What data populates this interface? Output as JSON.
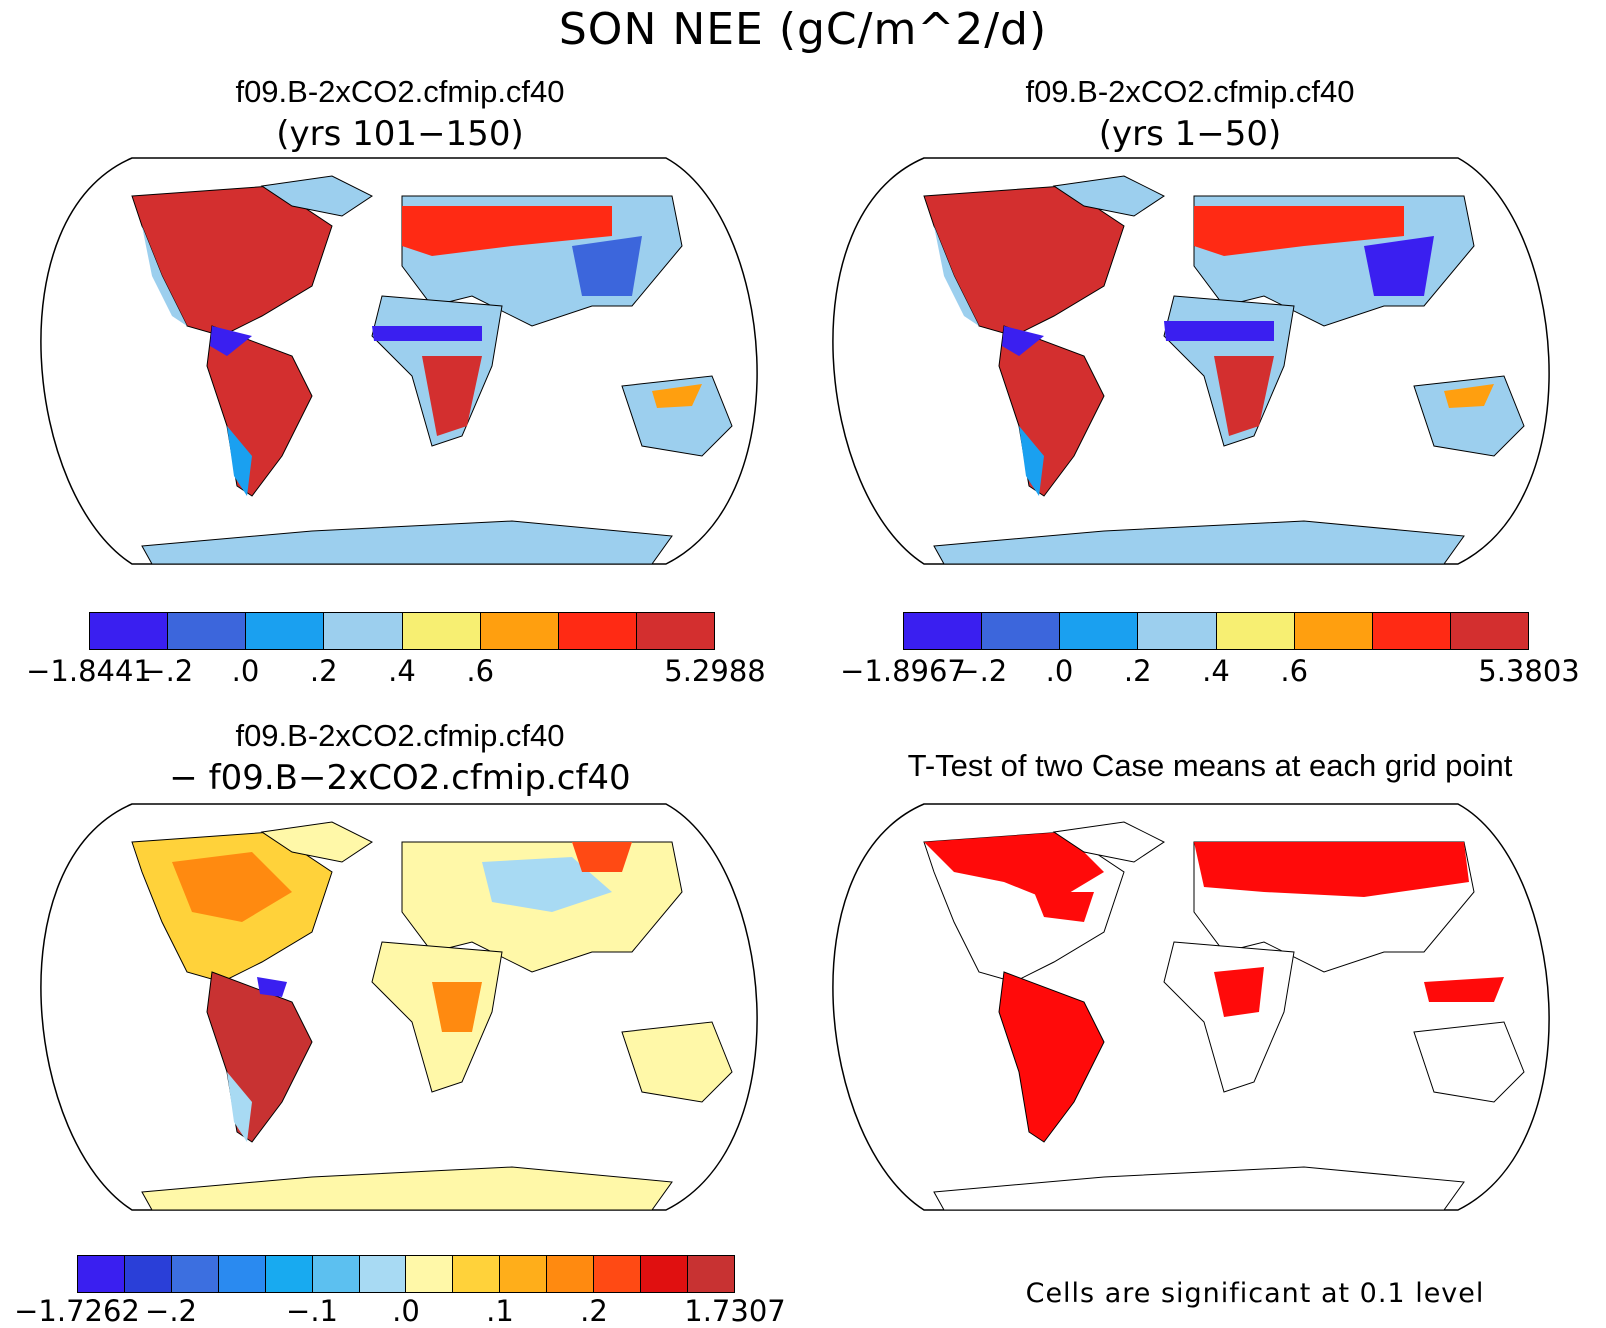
{
  "title": "SON NEE (gC/m^2/d)",
  "panels": {
    "p1": {
      "title": "f09.B-2xCO2.cfmip.cf40",
      "subtitle": "(yrs 101−150)"
    },
    "p2": {
      "title": "f09.B-2xCO2.cfmip.cf40",
      "subtitle": "(yrs 1−50)"
    },
    "p3": {
      "title": "f09.B-2xCO2.cfmip.cf40",
      "subtitle": "− f09.B−2xCO2.cfmip.cf40"
    },
    "p4": {
      "title": "T-Test of two Case means at each grid point",
      "note": "Cells are significant at 0.1 level"
    }
  },
  "colorbars": {
    "cb1": {
      "colors": [
        "#3a1ff0",
        "#3c66dc",
        "#1aa0f0",
        "#9ccfee",
        "#f7ef72",
        "#ff9f0f",
        "#ff2a14",
        "#d32f2f"
      ],
      "labels": [
        "−1.8441",
        "−.2",
        ".0",
        ".2",
        ".4",
        ".6",
        "5.2988"
      ]
    },
    "cb2": {
      "colors": [
        "#3a1ff0",
        "#3c66dc",
        "#1aa0f0",
        "#9ccfee",
        "#f7ef72",
        "#ff9f0f",
        "#ff2a14",
        "#d32f2f"
      ],
      "labels": [
        "−1.8967",
        "−.2",
        ".0",
        ".2",
        ".4",
        ".6",
        "5.3803"
      ]
    },
    "cb3": {
      "colors": [
        "#3a1ff0",
        "#2a3fd8",
        "#3c6fe0",
        "#2a8af0",
        "#18aaf0",
        "#5cc0f0",
        "#a8daf3",
        "#fff8a8",
        "#ffd23a",
        "#ffae1a",
        "#ff8a10",
        "#ff4a14",
        "#e01010",
        "#c83232"
      ],
      "labels": [
        "−1.7262",
        "−.2",
        "−.1",
        ".0",
        ".1",
        ".2",
        "1.7307"
      ]
    }
  },
  "colors": {
    "land_blue": "#9ccfee",
    "land_red": "#d32f2f",
    "land_yellow": "#f7ef72",
    "sig_red": "#ff0a0a"
  }
}
